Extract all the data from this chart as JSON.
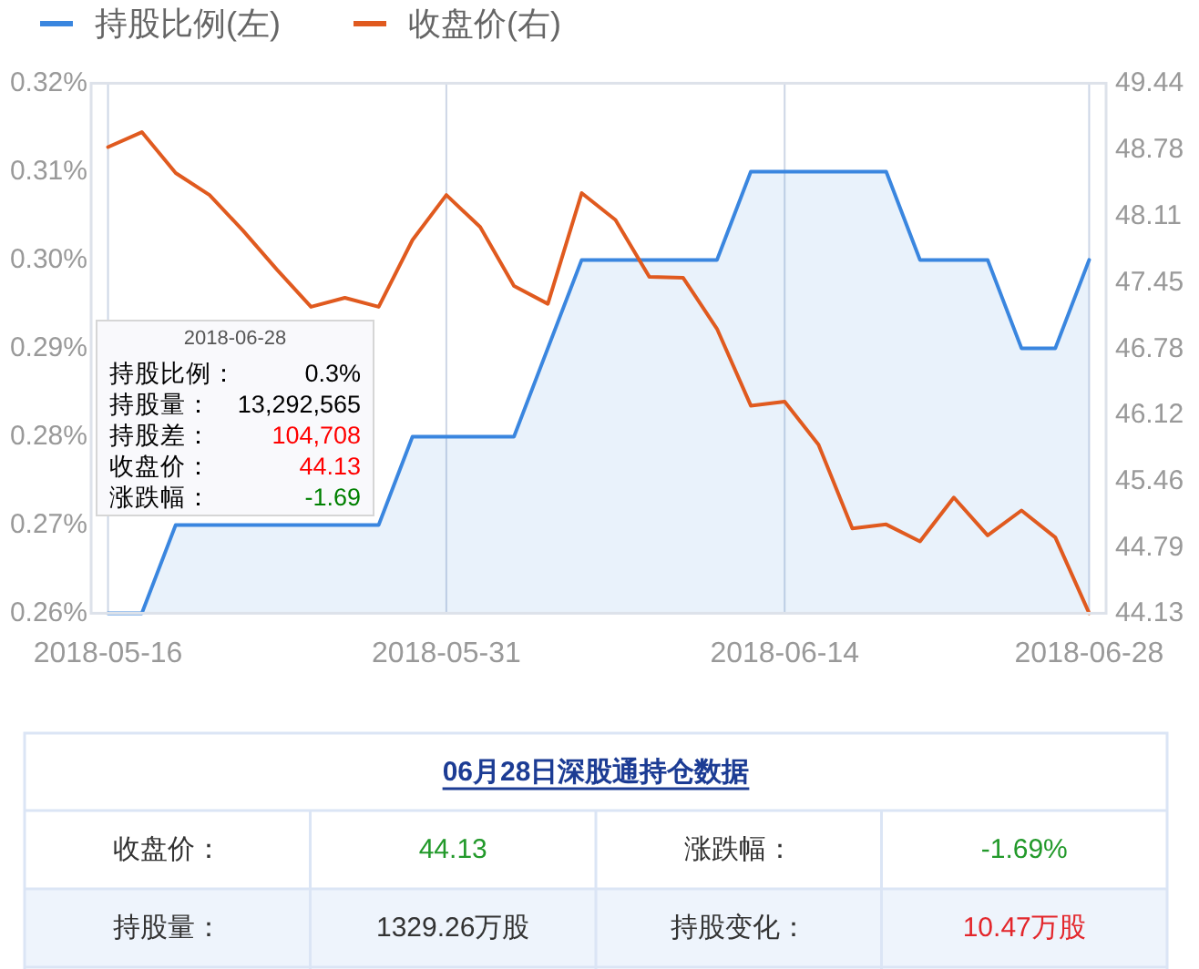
{
  "chart_data": [
    {
      "type": "line",
      "categories": [
        "2018-05-16",
        null,
        null,
        null,
        null,
        null,
        null,
        null,
        null,
        null,
        "2018-05-31",
        null,
        null,
        null,
        null,
        null,
        null,
        null,
        null,
        null,
        "2018-06-14",
        null,
        null,
        null,
        null,
        null,
        null,
        null,
        null,
        "2018-06-28"
      ],
      "series": [
        {
          "name": "持股比例(左)",
          "type": "area",
          "color": "#3a86df",
          "values": [
            0.26,
            0.26,
            0.27,
            0.27,
            0.27,
            0.27,
            0.27,
            0.27,
            0.27,
            0.28,
            0.28,
            0.28,
            0.28,
            0.29,
            0.3,
            0.3,
            0.3,
            0.3,
            0.3,
            0.31,
            0.31,
            0.31,
            0.31,
            0.31,
            0.3,
            0.3,
            0.3,
            0.29,
            0.29,
            0.3
          ]
        },
        {
          "name": "收盘价(右)",
          "type": "line",
          "axis": "y2",
          "color": "#e05a1f",
          "values": [
            48.8,
            48.95,
            48.54,
            48.32,
            47.96,
            47.57,
            47.2,
            47.29,
            47.2,
            47.87,
            48.32,
            48.0,
            47.41,
            47.23,
            48.34,
            48.07,
            47.5,
            47.49,
            46.98,
            46.21,
            46.25,
            45.82,
            44.98,
            45.02,
            44.85,
            45.29,
            44.91,
            45.16,
            44.89,
            44.13
          ]
        }
      ],
      "ylim": [
        0.26,
        0.32
      ],
      "yticks": [
        {
          "value": 0.26,
          "label": "0.26%"
        },
        {
          "value": 0.27,
          "label": "0.27%"
        },
        {
          "value": 0.28,
          "label": "0.28%"
        },
        {
          "value": 0.29,
          "label": "0.29%"
        },
        {
          "value": 0.3,
          "label": "0.30%"
        },
        {
          "value": 0.31,
          "label": "0.31%"
        },
        {
          "value": 0.32,
          "label": "0.32%"
        }
      ],
      "y2lim": [
        44.13,
        49.44
      ],
      "y2ticks": [
        44.13,
        44.79,
        45.46,
        46.12,
        46.78,
        47.45,
        48.11,
        48.78,
        49.44
      ],
      "grid": "x",
      "legend": "top left",
      "annotations": [
        "2018-06-28",
        "持股比例：",
        "0.3%",
        "持股量：",
        "13,292,565",
        "持股差：",
        "104,708",
        "收盘价：",
        "44.13",
        "涨跌幅：",
        "-1.69"
      ]
    },
    {
      "type": "other",
      "title": "06月28日深股通持仓数据",
      "annotations": [
        "收盘价：",
        "44.13",
        "涨跌幅：",
        "-1.69%",
        "持股量：",
        "1329.26万股",
        "持股变化：",
        "10.47万股"
      ]
    }
  ]
}
